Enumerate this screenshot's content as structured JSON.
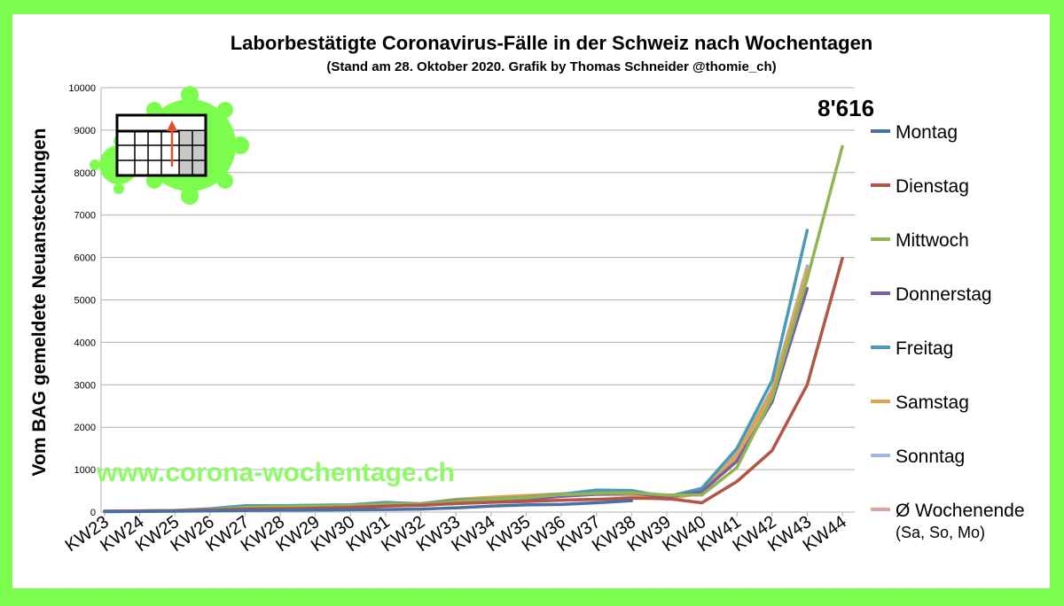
{
  "chart_data": {
    "type": "line",
    "title": "Laborbestätigte Coronavirus-Fälle in der Schweiz nach Wochentagen",
    "subtitle": "(Stand am 28. Oktober 2020. Grafik by Thomas Schneider @thomie_ch)",
    "ylabel": "Vom BAG gemeldete Neuansteckungen",
    "xlabel": "",
    "ylim": [
      0,
      10000
    ],
    "yticks": [
      0,
      1000,
      2000,
      3000,
      4000,
      5000,
      6000,
      7000,
      8000,
      9000,
      10000
    ],
    "categories": [
      "KW23",
      "KW24",
      "KW25",
      "KW26",
      "KW27",
      "KW28",
      "KW29",
      "KW30",
      "KW31",
      "KW32",
      "KW33",
      "KW34",
      "KW35",
      "KW36",
      "KW37",
      "KW38",
      "KW39",
      "KW40",
      "KW41",
      "KW42",
      "KW43",
      "KW44"
    ],
    "grid": true,
    "legend_position": "right",
    "series": [
      {
        "name": "Montag",
        "color": "#4a6fa5",
        "values": [
          10,
          15,
          20,
          30,
          40,
          45,
          50,
          55,
          60,
          70,
          100,
          140,
          170,
          180,
          220,
          270,
          null,
          null,
          null,
          null,
          null,
          null
        ]
      },
      {
        "name": "Dienstag",
        "color": "#b45447",
        "values": [
          20,
          25,
          30,
          50,
          70,
          80,
          90,
          110,
          140,
          160,
          200,
          230,
          250,
          280,
          300,
          330,
          320,
          220,
          720,
          1450,
          3000,
          5980
        ]
      },
      {
        "name": "Mittwoch",
        "color": "#93b453",
        "values": [
          20,
          25,
          35,
          60,
          110,
          130,
          140,
          150,
          190,
          180,
          250,
          300,
          340,
          410,
          440,
          460,
          400,
          400,
          1050,
          2700,
          5500,
          8616
        ]
      },
      {
        "name": "Donnerstag",
        "color": "#7c5ea3",
        "values": [
          15,
          20,
          30,
          50,
          80,
          100,
          110,
          120,
          160,
          160,
          210,
          260,
          300,
          370,
          420,
          450,
          350,
          480,
          1200,
          2600,
          5270,
          null
        ]
      },
      {
        "name": "Freitag",
        "color": "#4b9ab5",
        "values": [
          20,
          25,
          40,
          80,
          150,
          150,
          160,
          170,
          230,
          190,
          280,
          310,
          350,
          420,
          520,
          510,
          360,
          560,
          1500,
          3100,
          6640,
          null
        ]
      },
      {
        "name": "Samstag",
        "color": "#e0a347",
        "values": [
          20,
          30,
          40,
          60,
          110,
          140,
          160,
          170,
          220,
          200,
          300,
          350,
          390,
          430,
          460,
          420,
          310,
          470,
          1350,
          2850,
          5700,
          null
        ]
      },
      {
        "name": "Sonntag",
        "color": "#a3b5d8",
        "values": [
          15,
          20,
          30,
          50,
          90,
          110,
          120,
          130,
          180,
          170,
          240,
          290,
          330,
          410,
          460,
          400,
          300,
          480,
          1400,
          2900,
          5800,
          null
        ]
      },
      {
        "name": "Ø Wochenende (Sa, So, Mo)",
        "color": "#dba39f",
        "values": [
          15,
          25,
          30,
          50,
          90,
          100,
          110,
          120,
          160,
          150,
          220,
          270,
          310,
          380,
          420,
          390,
          300,
          450,
          1300,
          2800,
          5800,
          null
        ]
      }
    ],
    "annotation": "8'616",
    "watermark": "www.corona-wochentage.ch"
  }
}
